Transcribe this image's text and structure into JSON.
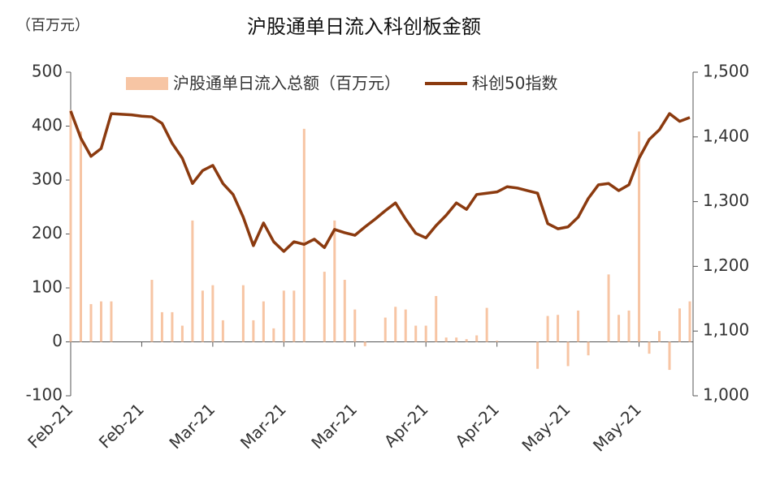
{
  "chart_data": {
    "type": "bar-line",
    "title": "沪股通单日流入科创板金额",
    "unit_label": "（百万元）",
    "categories": [
      "Feb-21",
      null,
      null,
      null,
      null,
      null,
      null,
      "Feb-21",
      null,
      null,
      null,
      null,
      null,
      null,
      "Mar-21",
      null,
      null,
      null,
      null,
      null,
      null,
      "Mar-21",
      null,
      null,
      null,
      null,
      null,
      null,
      "Mar-21",
      null,
      null,
      null,
      null,
      null,
      null,
      "Apr-21",
      null,
      null,
      null,
      null,
      null,
      null,
      "Apr-21",
      null,
      null,
      null,
      null,
      null,
      null,
      "May-21",
      null,
      null,
      null,
      null,
      null,
      null,
      "May-21",
      null,
      null,
      null,
      null,
      null
    ],
    "series": [
      {
        "name": "沪股通单日流入总额（百万元）",
        "type": "bar",
        "color": "#f7c5a4",
        "values": [
          430,
          390,
          70,
          75,
          75,
          0,
          0,
          0,
          115,
          55,
          55,
          30,
          225,
          95,
          105,
          40,
          0,
          105,
          40,
          75,
          25,
          95,
          95,
          395,
          0,
          130,
          225,
          115,
          60,
          -8,
          0,
          45,
          65,
          60,
          30,
          30,
          85,
          8,
          8,
          5,
          12,
          63,
          2,
          0,
          0,
          0,
          -50,
          48,
          50,
          -45,
          58,
          -25,
          0,
          125,
          50,
          58,
          390,
          -22,
          20,
          -52,
          62,
          75
        ]
      },
      {
        "name": "科创50指数",
        "type": "line",
        "axis": "y2",
        "color": "#8b3a0f",
        "values": [
          1440,
          1398,
          1370,
          1382,
          1436,
          1435,
          1434,
          1432,
          1431,
          1421,
          1390,
          1367,
          1328,
          1348,
          1356,
          1328,
          1311,
          1276,
          1232,
          1267,
          1238,
          1223,
          1238,
          1234,
          1242,
          1229,
          1257,
          1252,
          1248,
          1261,
          1273,
          1286,
          1298,
          1273,
          1251,
          1244,
          1263,
          1279,
          1298,
          1288,
          1311,
          1313,
          1315,
          1323,
          1321,
          1317,
          1313,
          1266,
          1258,
          1261,
          1276,
          1305,
          1326,
          1328,
          1317,
          1326,
          1367,
          1396,
          1411,
          1436,
          1424,
          1430
        ]
      }
    ],
    "ylim": [
      -100,
      500
    ],
    "yticks": [
      -100,
      0,
      100,
      200,
      300,
      400,
      500
    ],
    "y2lim": [
      1000,
      1500
    ],
    "y2ticks": [
      {
        "value": 1000,
        "label": "1,000"
      },
      {
        "value": 1100,
        "label": "1,100"
      },
      {
        "value": 1200,
        "label": "1,200"
      },
      {
        "value": 1300,
        "label": "1,300"
      },
      {
        "value": 1400,
        "label": "1,400"
      },
      {
        "value": 1500,
        "label": "1,500"
      }
    ],
    "grid": false,
    "legend": "top"
  }
}
